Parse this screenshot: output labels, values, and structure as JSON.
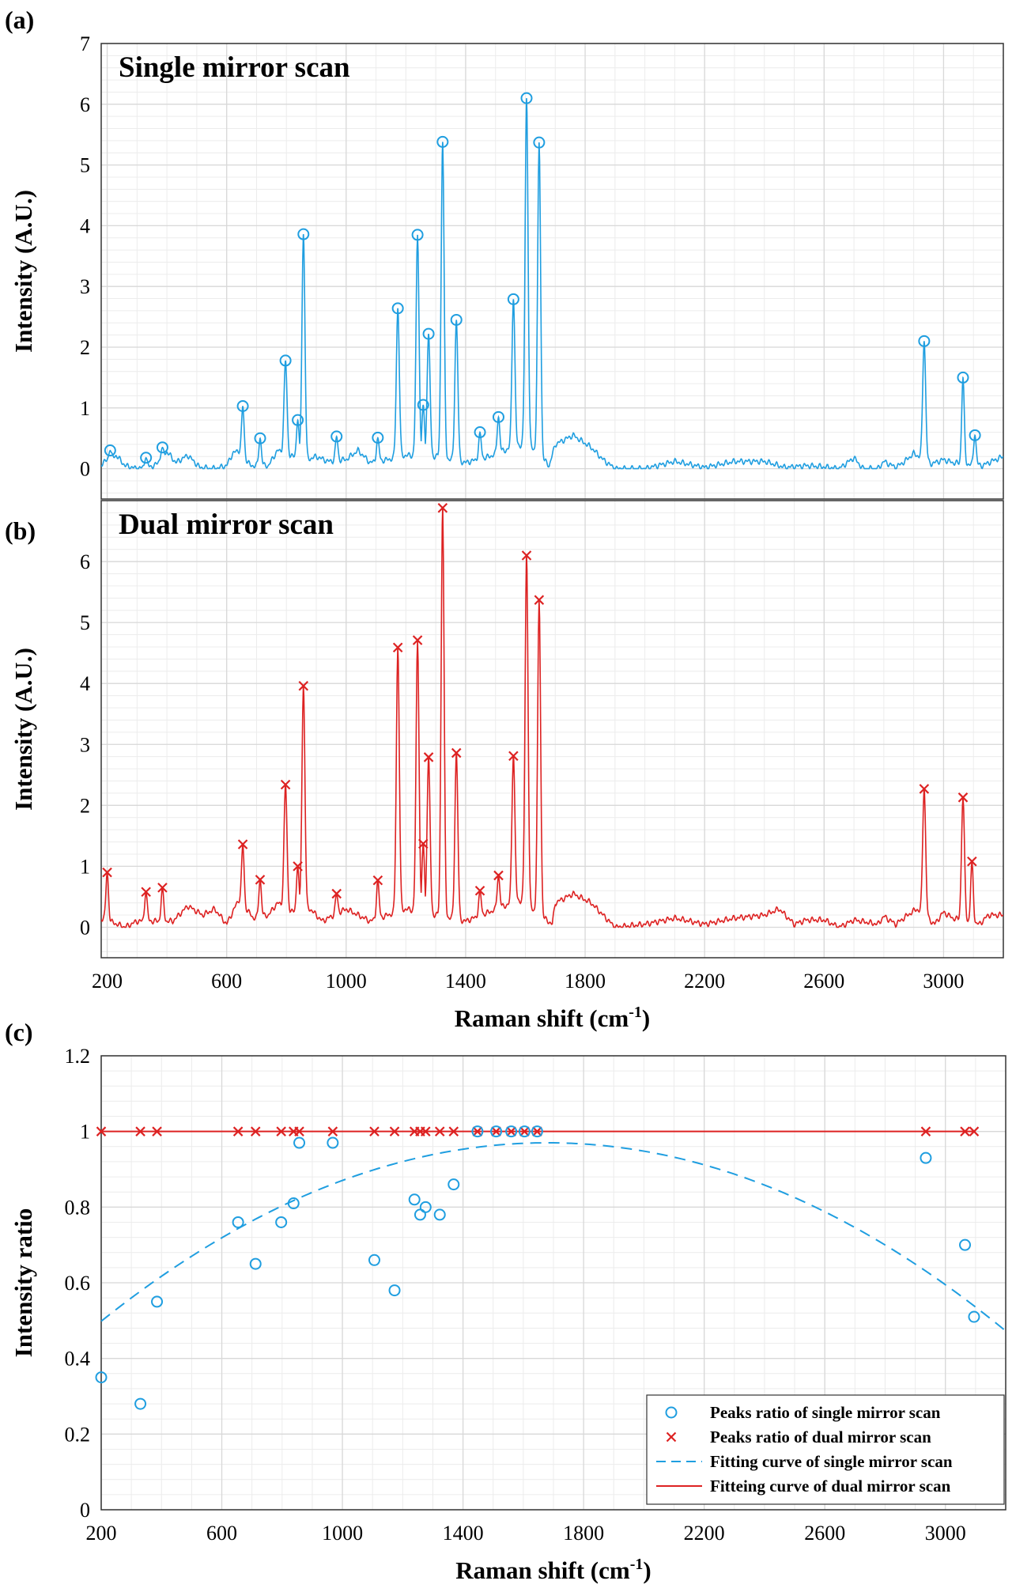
{
  "colors": {
    "single": "#1f9ee0",
    "dual": "#dd2222",
    "grid": "#d8d8d8",
    "gridMinor": "#ececec"
  },
  "figure": {
    "panel_labels": [
      "(a)",
      "(b)",
      "(c)"
    ]
  },
  "chart_data": [
    {
      "id": "a",
      "type": "line",
      "title": "Single mirror scan",
      "xlabel": "",
      "ylabel": "Intensity (A.U.)",
      "xlim": [
        180,
        3200
      ],
      "ylim": [
        -0.5,
        7
      ],
      "xticks": [
        200,
        600,
        1000,
        1400,
        1800,
        2200,
        2600,
        3000
      ],
      "yticks": [
        0,
        1,
        2,
        3,
        4,
        5,
        6,
        7
      ],
      "grid": true,
      "color": "#1f9ee0",
      "peak_marker": "circle",
      "peaks": [
        [
          210,
          0.3
        ],
        [
          330,
          0.18
        ],
        [
          385,
          0.35
        ],
        [
          654,
          1.03
        ],
        [
          712,
          0.5
        ],
        [
          797,
          1.78
        ],
        [
          838,
          0.8
        ],
        [
          857,
          3.86
        ],
        [
          968,
          0.53
        ],
        [
          1106,
          0.51
        ],
        [
          1173,
          2.64
        ],
        [
          1239,
          3.85
        ],
        [
          1258,
          1.05
        ],
        [
          1276,
          2.22
        ],
        [
          1323,
          5.38
        ],
        [
          1369,
          2.45
        ],
        [
          1448,
          0.6
        ],
        [
          1510,
          0.85
        ],
        [
          1560,
          2.79
        ],
        [
          1604,
          6.1
        ],
        [
          1646,
          5.37
        ],
        [
          2935,
          2.1
        ],
        [
          3065,
          1.5
        ],
        [
          3105,
          0.55
        ]
      ],
      "baseline": [
        [
          180,
          0.08
        ],
        [
          230,
          0.22
        ],
        [
          260,
          0.05
        ],
        [
          300,
          0.0
        ],
        [
          360,
          0.05
        ],
        [
          400,
          0.28
        ],
        [
          430,
          0.1
        ],
        [
          470,
          0.22
        ],
        [
          510,
          0.02
        ],
        [
          560,
          0.0
        ],
        [
          600,
          0.05
        ],
        [
          620,
          0.25
        ],
        [
          640,
          0.3
        ],
        [
          680,
          0.05
        ],
        [
          740,
          0.05
        ],
        [
          770,
          0.3
        ],
        [
          820,
          0.2
        ],
        [
          870,
          0.15
        ],
        [
          900,
          0.2
        ],
        [
          940,
          0.12
        ],
        [
          1000,
          0.15
        ],
        [
          1040,
          0.3
        ],
        [
          1080,
          0.1
        ],
        [
          1140,
          0.15
        ],
        [
          1200,
          0.22
        ],
        [
          1300,
          0.2
        ],
        [
          1400,
          0.1
        ],
        [
          1480,
          0.2
        ],
        [
          1530,
          0.3
        ],
        [
          1590,
          0.4
        ],
        [
          1620,
          0.35
        ],
        [
          1680,
          0.05
        ],
        [
          1700,
          0.4
        ],
        [
          1760,
          0.55
        ],
        [
          1820,
          0.35
        ],
        [
          1860,
          0.15
        ],
        [
          1900,
          0.0
        ],
        [
          2000,
          0.0
        ],
        [
          2100,
          0.12
        ],
        [
          2200,
          0.02
        ],
        [
          2300,
          0.12
        ],
        [
          2400,
          0.12
        ],
        [
          2470,
          0.02
        ],
        [
          2540,
          0.05
        ],
        [
          2600,
          0.03
        ],
        [
          2650,
          0.0
        ],
        [
          2700,
          0.18
        ],
        [
          2730,
          0.0
        ],
        [
          2780,
          0.0
        ],
        [
          2800,
          0.12
        ],
        [
          2840,
          0.02
        ],
        [
          2870,
          0.12
        ],
        [
          2900,
          0.25
        ],
        [
          2960,
          0.08
        ],
        [
          3000,
          0.15
        ],
        [
          3030,
          0.1
        ],
        [
          3130,
          0.05
        ],
        [
          3160,
          0.12
        ],
        [
          3200,
          0.2
        ]
      ]
    },
    {
      "id": "b",
      "type": "line",
      "title": "Dual mirror scan",
      "xlabel": "Raman shift (cm-1)",
      "ylabel": "Intensity (A.U.)",
      "xlim": [
        180,
        3200
      ],
      "ylim": [
        -0.5,
        7
      ],
      "xticks": [
        200,
        600,
        1000,
        1400,
        1800,
        2200,
        2600,
        3000
      ],
      "yticks": [
        0,
        1,
        2,
        3,
        4,
        5,
        6
      ],
      "grid": true,
      "color": "#dd2222",
      "peak_marker": "cross",
      "peaks": [
        [
          200,
          0.9
        ],
        [
          330,
          0.58
        ],
        [
          385,
          0.65
        ],
        [
          654,
          1.36
        ],
        [
          712,
          0.78
        ],
        [
          797,
          2.34
        ],
        [
          838,
          1.0
        ],
        [
          857,
          3.96
        ],
        [
          968,
          0.55
        ],
        [
          1106,
          0.77
        ],
        [
          1173,
          4.59
        ],
        [
          1239,
          4.71
        ],
        [
          1258,
          1.37
        ],
        [
          1276,
          2.79
        ],
        [
          1323,
          6.88
        ],
        [
          1369,
          2.86
        ],
        [
          1448,
          0.6
        ],
        [
          1510,
          0.85
        ],
        [
          1560,
          2.81
        ],
        [
          1604,
          6.1
        ],
        [
          1646,
          5.37
        ],
        [
          2935,
          2.27
        ],
        [
          3065,
          2.13
        ],
        [
          3095,
          1.08
        ]
      ],
      "baseline": [
        [
          180,
          0.15
        ],
        [
          260,
          0.0
        ],
        [
          300,
          0.1
        ],
        [
          360,
          0.1
        ],
        [
          420,
          0.1
        ],
        [
          470,
          0.35
        ],
        [
          520,
          0.2
        ],
        [
          560,
          0.3
        ],
        [
          600,
          0.05
        ],
        [
          640,
          0.45
        ],
        [
          690,
          0.15
        ],
        [
          740,
          0.2
        ],
        [
          770,
          0.4
        ],
        [
          820,
          0.25
        ],
        [
          880,
          0.3
        ],
        [
          920,
          0.1
        ],
        [
          1000,
          0.3
        ],
        [
          1040,
          0.2
        ],
        [
          1080,
          0.1
        ],
        [
          1140,
          0.2
        ],
        [
          1200,
          0.3
        ],
        [
          1300,
          0.2
        ],
        [
          1400,
          0.1
        ],
        [
          1480,
          0.25
        ],
        [
          1530,
          0.35
        ],
        [
          1590,
          0.45
        ],
        [
          1620,
          0.3
        ],
        [
          1690,
          0.05
        ],
        [
          1700,
          0.4
        ],
        [
          1760,
          0.55
        ],
        [
          1820,
          0.4
        ],
        [
          1860,
          0.2
        ],
        [
          1900,
          0.0
        ],
        [
          2000,
          0.05
        ],
        [
          2100,
          0.15
        ],
        [
          2200,
          0.05
        ],
        [
          2300,
          0.15
        ],
        [
          2400,
          0.2
        ],
        [
          2450,
          0.3
        ],
        [
          2500,
          0.05
        ],
        [
          2540,
          0.12
        ],
        [
          2600,
          0.12
        ],
        [
          2650,
          0.0
        ],
        [
          2700,
          0.12
        ],
        [
          2780,
          0.05
        ],
        [
          2800,
          0.18
        ],
        [
          2840,
          0.05
        ],
        [
          2880,
          0.2
        ],
        [
          2910,
          0.3
        ],
        [
          2970,
          0.05
        ],
        [
          3000,
          0.25
        ],
        [
          3030,
          0.15
        ],
        [
          3120,
          0.05
        ],
        [
          3150,
          0.2
        ],
        [
          3200,
          0.2
        ]
      ]
    },
    {
      "id": "c",
      "type": "scatter",
      "title": "",
      "xlabel": "Raman shift (cm-1)",
      "ylabel": "Intensity ratio",
      "xlim": [
        200,
        3200
      ],
      "ylim": [
        0,
        1.2
      ],
      "xticks": [
        200,
        600,
        1000,
        1400,
        1800,
        2200,
        2600,
        3000
      ],
      "yticks": [
        0,
        0.2,
        0.4,
        0.6,
        0.8,
        1,
        1.2
      ],
      "grid": true,
      "legend_position": "bottom-right",
      "series": [
        {
          "name": "Peaks ratio of single mirror scan",
          "kind": "marker-circle",
          "color": "#1f9ee0",
          "x": [
            200,
            330,
            385,
            654,
            712,
            797,
            838,
            857,
            968,
            1106,
            1173,
            1239,
            1258,
            1276,
            1323,
            1369,
            1448,
            1510,
            1560,
            1604,
            1646,
            2935,
            3065,
            3095
          ],
          "y": [
            0.35,
            0.28,
            0.55,
            0.76,
            0.65,
            0.76,
            0.81,
            0.97,
            0.97,
            0.66,
            0.58,
            0.82,
            0.78,
            0.8,
            0.78,
            0.86,
            1.0,
            1.0,
            1.0,
            1.0,
            1.0,
            0.93,
            0.7,
            0.51
          ]
        },
        {
          "name": "Peaks ratio of dual mirror scan",
          "kind": "marker-cross",
          "color": "#dd2222",
          "x": [
            200,
            330,
            385,
            654,
            712,
            797,
            838,
            857,
            968,
            1106,
            1173,
            1239,
            1258,
            1276,
            1323,
            1369,
            1448,
            1510,
            1560,
            1604,
            1646,
            2935,
            3065,
            3095
          ],
          "y": [
            1,
            1,
            1,
            1,
            1,
            1,
            1,
            1,
            1,
            1,
            1,
            1,
            1,
            1,
            1,
            1,
            1,
            1,
            1,
            1,
            1,
            1,
            1,
            1
          ]
        },
        {
          "name": "Fitting curve of single mirror scan",
          "kind": "line-dashed",
          "color": "#1f9ee0",
          "fit": {
            "type": "quadratic",
            "vertex_x": 1680,
            "vertex_y": 0.97,
            "coefficient": -2.153e-07
          }
        },
        {
          "name": "Fitteing curve of dual mirror scan",
          "kind": "line-solid",
          "color": "#dd2222",
          "x": [
            200,
            3100
          ],
          "y": [
            1,
            1
          ]
        }
      ]
    }
  ]
}
